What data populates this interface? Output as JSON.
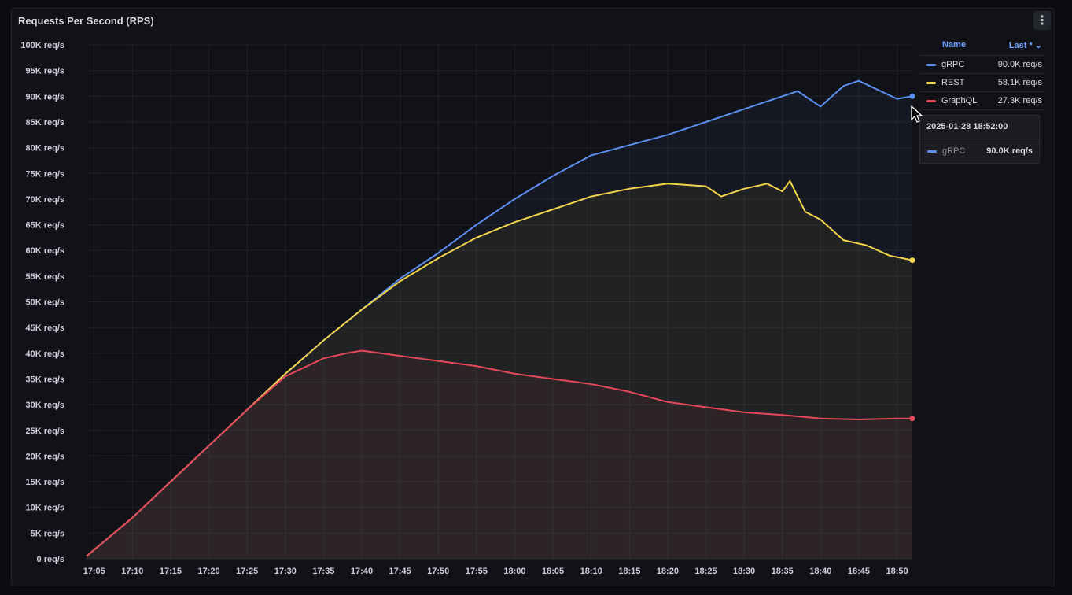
{
  "panel": {
    "title": "Requests Per Second (RPS)",
    "menu_icon": "kebab-menu-icon"
  },
  "legend": {
    "name_header": "Name",
    "value_header": "Last * ⌄",
    "items": [
      {
        "name": "gRPC",
        "value": "90.0K req/s",
        "color": "#5b8ff0"
      },
      {
        "name": "REST",
        "value": "58.1K req/s",
        "color": "#f2d34a"
      },
      {
        "name": "GraphQL",
        "value": "27.3K req/s",
        "color": "#e5485a"
      }
    ]
  },
  "tooltip": {
    "time": "2025-01-28 18:52:00",
    "series": "gRPC",
    "value": "90.0K req/s",
    "color": "#5b8ff0"
  },
  "chart_data": {
    "type": "line",
    "title": "Requests Per Second (RPS)",
    "x_unit": "time",
    "y_unit": "req/s",
    "ylim": [
      0,
      100000
    ],
    "y_ticks": [
      "0 req/s",
      "5K req/s",
      "10K req/s",
      "15K req/s",
      "20K req/s",
      "25K req/s",
      "30K req/s",
      "35K req/s",
      "40K req/s",
      "45K req/s",
      "50K req/s",
      "55K req/s",
      "60K req/s",
      "65K req/s",
      "70K req/s",
      "75K req/s",
      "80K req/s",
      "85K req/s",
      "90K req/s",
      "95K req/s",
      "100K req/s"
    ],
    "x_ticks": [
      "17:05",
      "17:10",
      "17:15",
      "17:20",
      "17:25",
      "17:30",
      "17:35",
      "17:40",
      "17:45",
      "17:50",
      "17:55",
      "18:00",
      "18:05",
      "18:10",
      "18:15",
      "18:20",
      "18:25",
      "18:30",
      "18:35",
      "18:40",
      "18:45",
      "18:50"
    ],
    "xlim": [
      "17:04",
      "18:52"
    ],
    "grid": true,
    "legend_position": "right",
    "series": [
      {
        "name": "gRPC",
        "color": "#5b8ff0",
        "x": [
          "17:04",
          "17:10",
          "17:15",
          "17:20",
          "17:25",
          "17:30",
          "17:35",
          "17:40",
          "17:45",
          "17:50",
          "17:55",
          "18:00",
          "18:05",
          "18:10",
          "18:15",
          "18:20",
          "18:25",
          "18:30",
          "18:35",
          "18:37",
          "18:40",
          "18:43",
          "18:45",
          "18:50",
          "18:52"
        ],
        "values": [
          500,
          8000,
          15000,
          22000,
          29000,
          36000,
          42500,
          48500,
          54500,
          59500,
          65000,
          70000,
          74500,
          78500,
          80500,
          82500,
          85000,
          87500,
          90000,
          91000,
          88000,
          92000,
          93000,
          89500,
          90000
        ]
      },
      {
        "name": "REST",
        "color": "#f2d34a",
        "x": [
          "17:04",
          "17:10",
          "17:15",
          "17:20",
          "17:25",
          "17:30",
          "17:35",
          "17:40",
          "17:45",
          "17:50",
          "17:55",
          "18:00",
          "18:05",
          "18:10",
          "18:15",
          "18:20",
          "18:25",
          "18:27",
          "18:30",
          "18:33",
          "18:35",
          "18:36",
          "18:38",
          "18:40",
          "18:43",
          "18:46",
          "18:49",
          "18:52"
        ],
        "values": [
          500,
          8000,
          15000,
          22000,
          29000,
          36000,
          42500,
          48500,
          54000,
          58500,
          62500,
          65500,
          68000,
          70500,
          72000,
          73000,
          72500,
          70500,
          72000,
          73000,
          71500,
          73500,
          67500,
          66000,
          62000,
          61000,
          59000,
          58100
        ]
      },
      {
        "name": "GraphQL",
        "color": "#e5485a",
        "x": [
          "17:04",
          "17:10",
          "17:15",
          "17:20",
          "17:25",
          "17:30",
          "17:35",
          "17:38",
          "17:40",
          "17:45",
          "17:50",
          "17:55",
          "18:00",
          "18:05",
          "18:10",
          "18:15",
          "18:20",
          "18:25",
          "18:30",
          "18:35",
          "18:40",
          "18:45",
          "18:50",
          "18:52"
        ],
        "values": [
          500,
          8000,
          15000,
          22000,
          29000,
          35500,
          39000,
          40000,
          40500,
          39500,
          38500,
          37500,
          36000,
          35000,
          34000,
          32500,
          30500,
          29500,
          28500,
          28000,
          27300,
          27100,
          27300,
          27300
        ]
      }
    ]
  }
}
